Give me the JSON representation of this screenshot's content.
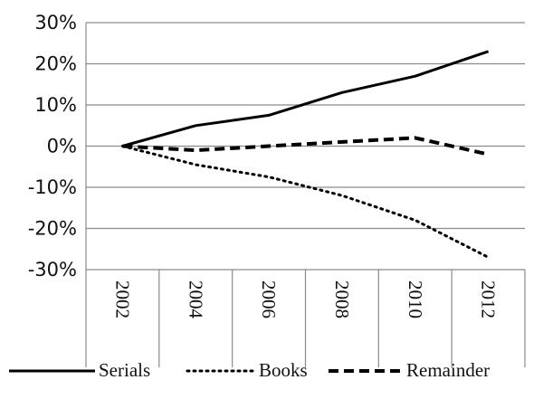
{
  "chart_data": {
    "type": "line",
    "x": [
      "2002",
      "2004",
      "2006",
      "2008",
      "2010",
      "2012"
    ],
    "y_ticks": [
      "30%",
      "20%",
      "10%",
      "0%",
      "-10%",
      "-20%",
      "-30%"
    ],
    "ylim": [
      -30,
      30
    ],
    "grid": true,
    "legend_position": "bottom",
    "series": [
      {
        "name": "Serials",
        "style": "solid",
        "values": [
          0,
          5,
          7.5,
          13,
          17,
          23
        ]
      },
      {
        "name": "Books",
        "style": "dotted",
        "values": [
          0,
          -4.5,
          -7.5,
          -12,
          -18,
          -27
        ]
      },
      {
        "name": "Remainder",
        "style": "dashed",
        "values": [
          0,
          -1,
          0,
          1,
          2,
          -2
        ]
      }
    ],
    "title": "",
    "xlabel": "",
    "ylabel": ""
  }
}
